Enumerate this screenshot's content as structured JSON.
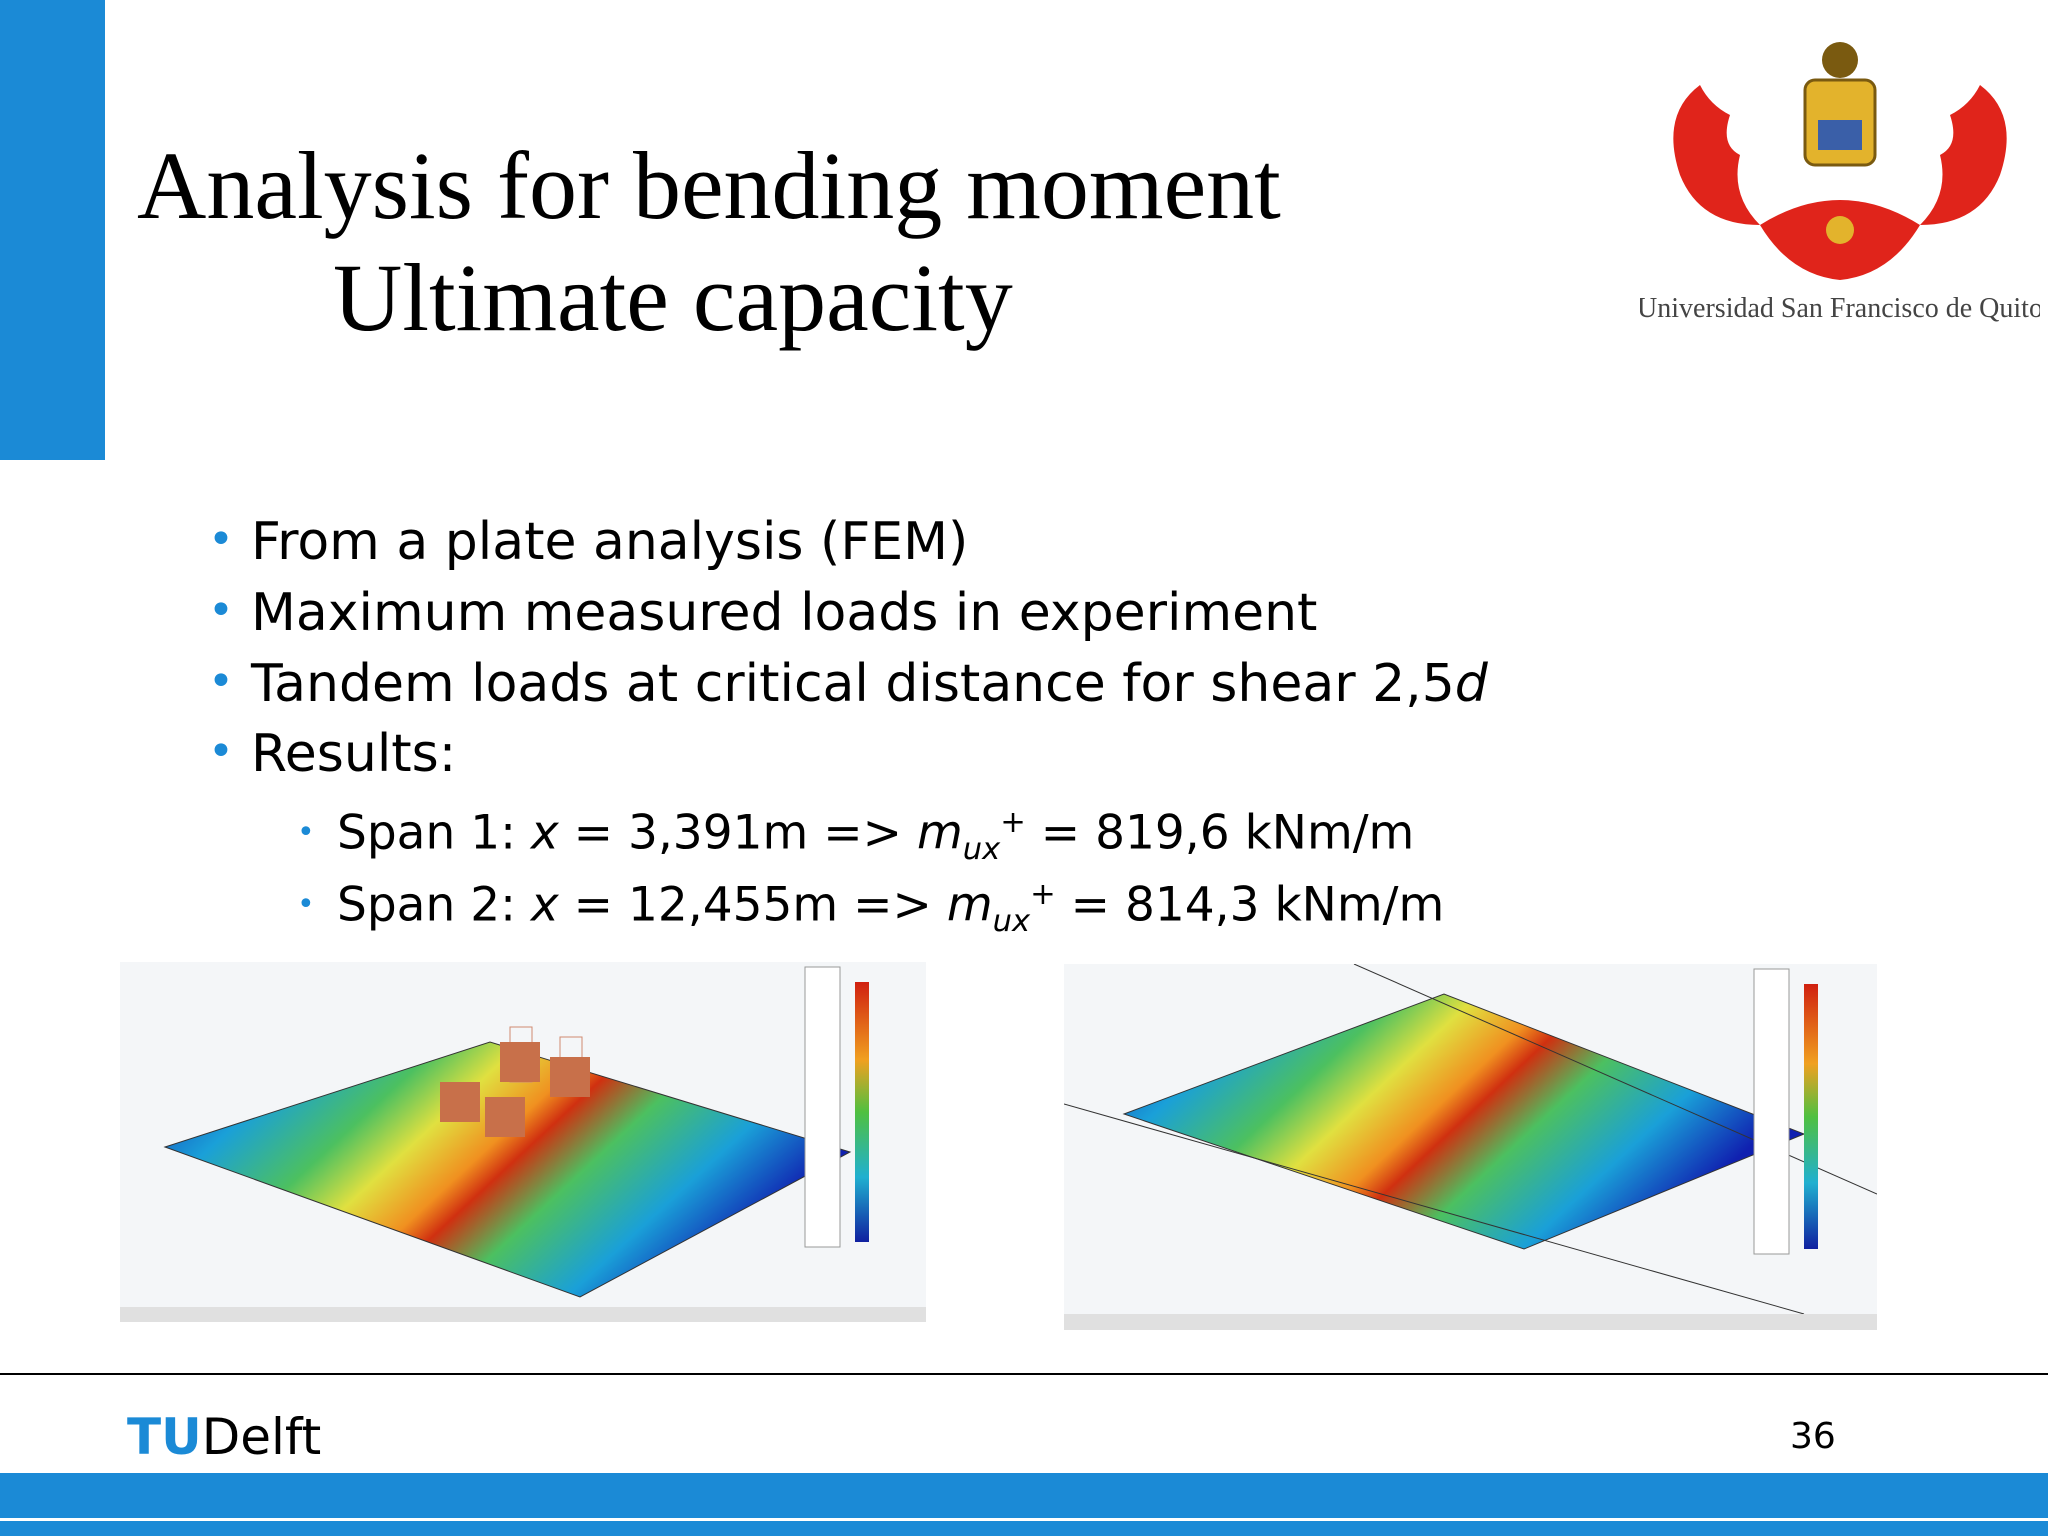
{
  "header": {
    "title_lines": [
      "Analysis for bending moment",
      "Ultimate capacity"
    ],
    "logo_caption": "Universidad San Francisco de Quito"
  },
  "bullets": [
    {
      "level": 1,
      "segments": [
        {
          "text": "From a plate analysis (FEM)"
        }
      ]
    },
    {
      "level": 1,
      "segments": [
        {
          "text": "Maximum measured loads in experiment"
        }
      ]
    },
    {
      "level": 1,
      "segments": [
        {
          "text": "Tandem loads at critical distance for shear  2,5"
        },
        {
          "text": "d",
          "italic": true
        }
      ]
    },
    {
      "level": 1,
      "segments": [
        {
          "text": "Results:"
        }
      ]
    },
    {
      "level": 2,
      "segments": [
        {
          "text": "Span 1: "
        },
        {
          "text": "x",
          "italic": true
        },
        {
          "text": " = 3,391m => "
        },
        {
          "text": "m",
          "italic": true
        },
        {
          "text": "ux",
          "italic": true,
          "sub": true
        },
        {
          "text": "+",
          "sup": true
        },
        {
          "text": " = 819,6 kNm/m"
        }
      ]
    },
    {
      "level": 2,
      "segments": [
        {
          "text": "Span 2: "
        },
        {
          "text": "x",
          "italic": true
        },
        {
          "text": " = 12,455m => "
        },
        {
          "text": "m",
          "italic": true
        },
        {
          "text": "ux",
          "italic": true,
          "sub": true
        },
        {
          "text": "+",
          "sup": true
        },
        {
          "text": " = 814,3 kNm/m"
        }
      ]
    }
  ],
  "footer": {
    "logo_tu": "TU",
    "logo_delft": "Delft",
    "page_number": "36"
  }
}
